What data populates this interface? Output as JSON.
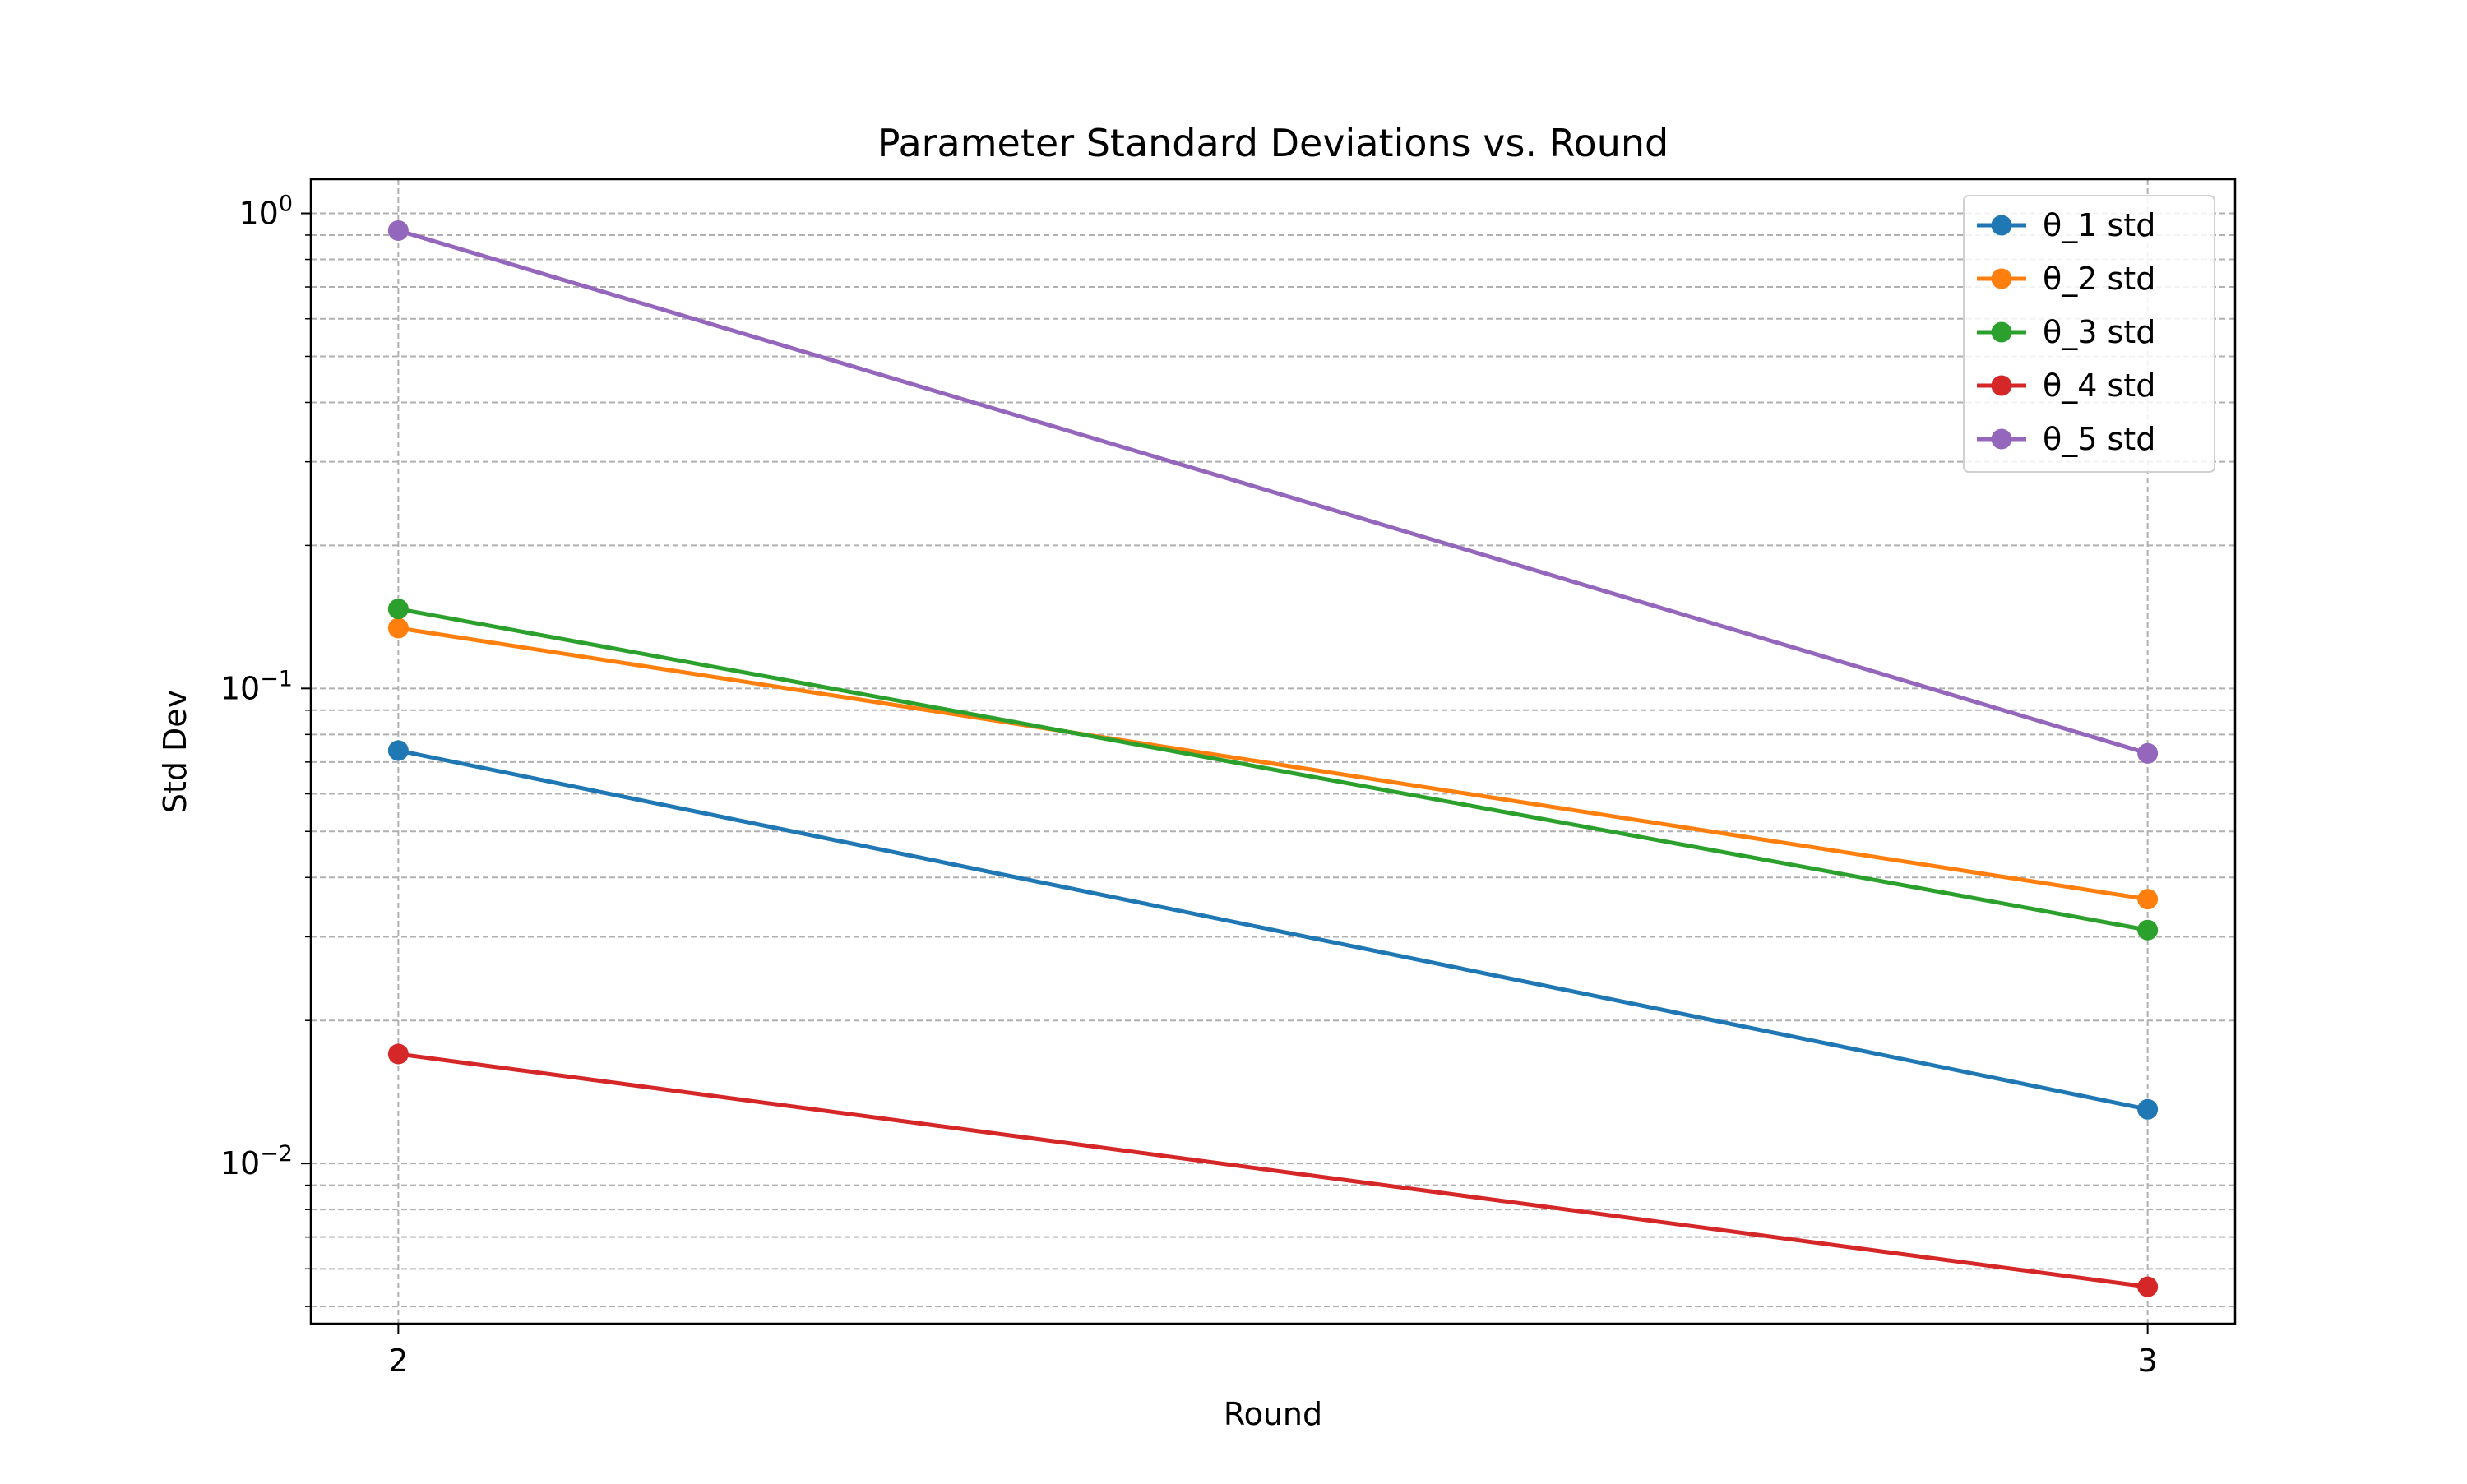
{
  "chart_data": {
    "type": "line",
    "title": "Parameter Standard Deviations vs. Round",
    "xlabel": "Round",
    "ylabel": "Std Dev",
    "y_scale": "log",
    "x": [
      2,
      3
    ],
    "x_ticks": [
      "2",
      "3"
    ],
    "xlim": [
      1.95,
      3.05
    ],
    "ylim": [
      0.0046,
      1.18
    ],
    "y_major_ticks": [
      {
        "value": 1,
        "base": "10",
        "exp": "0"
      },
      {
        "value": 0.1,
        "base": "10",
        "exp": "−1"
      },
      {
        "value": 0.01,
        "base": "10",
        "exp": "−2"
      }
    ],
    "grid": true,
    "legend_position": "top-right",
    "series": [
      {
        "name": "θ_1 std",
        "color": "#1f77b4",
        "values": [
          0.074,
          0.013
        ]
      },
      {
        "name": "θ_2 std",
        "color": "#ff7f0e",
        "values": [
          0.134,
          0.036
        ]
      },
      {
        "name": "θ_3 std",
        "color": "#2ca02c",
        "values": [
          0.147,
          0.031
        ]
      },
      {
        "name": "θ_4 std",
        "color": "#d62728",
        "values": [
          0.017,
          0.0055
        ]
      },
      {
        "name": "θ_5 std",
        "color": "#9467bd",
        "values": [
          0.92,
          0.073
        ]
      }
    ]
  }
}
